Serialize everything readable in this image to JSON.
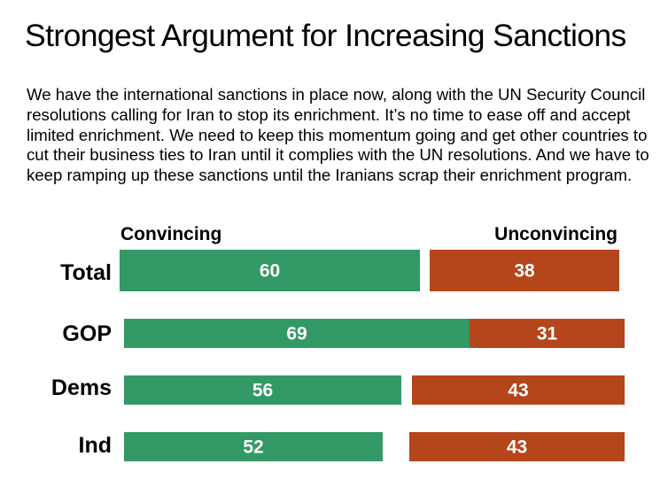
{
  "title": "Strongest Argument for Increasing Sanctions",
  "argument_text": "We have the international sanctions in place now, along with the UN Security Council resolutions calling for Iran to stop its enrichment.  It’s no time to ease off and accept limited enrichment.  We need to keep this momentum going and get other countries to cut their business ties to Iran until it complies with the UN resolutions.  And we have to keep ramping up these sanctions until the Iranians scrap their enrichment program.",
  "chart_data": {
    "type": "bar",
    "orientation": "horizontal",
    "stacked": true,
    "categories": [
      "Total",
      "GOP",
      "Dems",
      "Ind"
    ],
    "series": [
      {
        "name": "Convincing",
        "values": [
          60,
          69,
          56,
          52
        ],
        "color": "#339966"
      },
      {
        "name": "Unconvincing",
        "values": [
          38,
          31,
          43,
          43
        ],
        "color": "#b5451b"
      }
    ],
    "xlim": [
      0,
      100
    ],
    "grid": false,
    "legend_placement": "top"
  }
}
